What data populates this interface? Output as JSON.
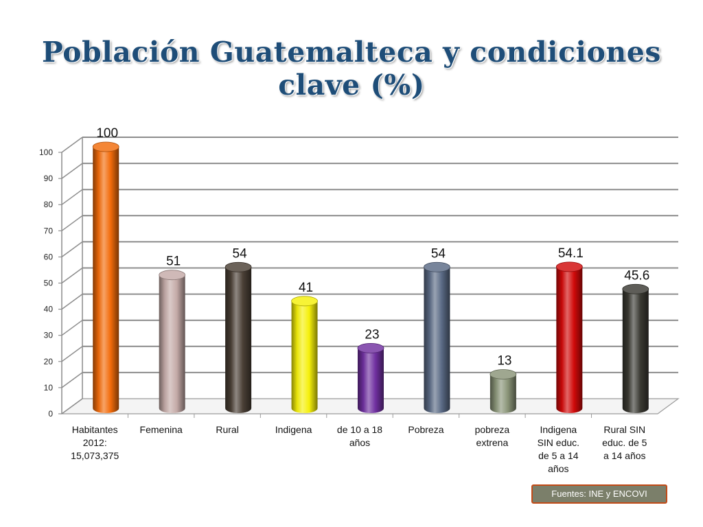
{
  "title": "Población Guatemalteca y condiciones clave (%)",
  "source": "Fuentes: INE y ENCOVI",
  "colors": {
    "title": "#1e4d78",
    "source_bg": "#7b7f6a",
    "source_border": "#c24a16"
  },
  "chart_data": {
    "type": "bar",
    "categories": [
      "Habitantes 2012: 15,073,375",
      "Femenina",
      "Rural",
      "Indigena",
      "de 10 a 18 años",
      "Pobreza",
      "pobreza extrena",
      "Indigena SIN educ. de 5 a 14 años",
      "Rural  SIN educ. de 5 a 14 años"
    ],
    "category_lines": [
      [
        "Habitantes",
        "2012:",
        "15,073,375"
      ],
      [
        "Femenina"
      ],
      [
        "Rural"
      ],
      [
        "Indigena"
      ],
      [
        "de 10 a 18",
        "años"
      ],
      [
        "Pobreza"
      ],
      [
        "pobreza",
        "extrena"
      ],
      [
        "Indigena",
        "SIN educ.",
        "de 5 a 14",
        "años"
      ],
      [
        "Rural  SIN",
        "educ. de 5",
        "a 14 años"
      ]
    ],
    "values": [
      100,
      51,
      54,
      41,
      23,
      54,
      13,
      54.1,
      45.6
    ],
    "data_labels": [
      "100",
      "51",
      "54",
      "41",
      "23",
      "54",
      "13",
      "54.1",
      "45.6"
    ],
    "bar_colors": [
      "#f26b0a",
      "#c4aaa7",
      "#4a3f35",
      "#f5f00a",
      "#7030a0",
      "#5a6a85",
      "#8a9478",
      "#d10a0a",
      "#3b3a33"
    ],
    "ylim": [
      0,
      100
    ],
    "yticks": [
      0,
      10,
      20,
      30,
      40,
      50,
      60,
      70,
      80,
      90,
      100
    ],
    "grid": true,
    "legend": "none",
    "xlabel": "",
    "ylabel": ""
  }
}
